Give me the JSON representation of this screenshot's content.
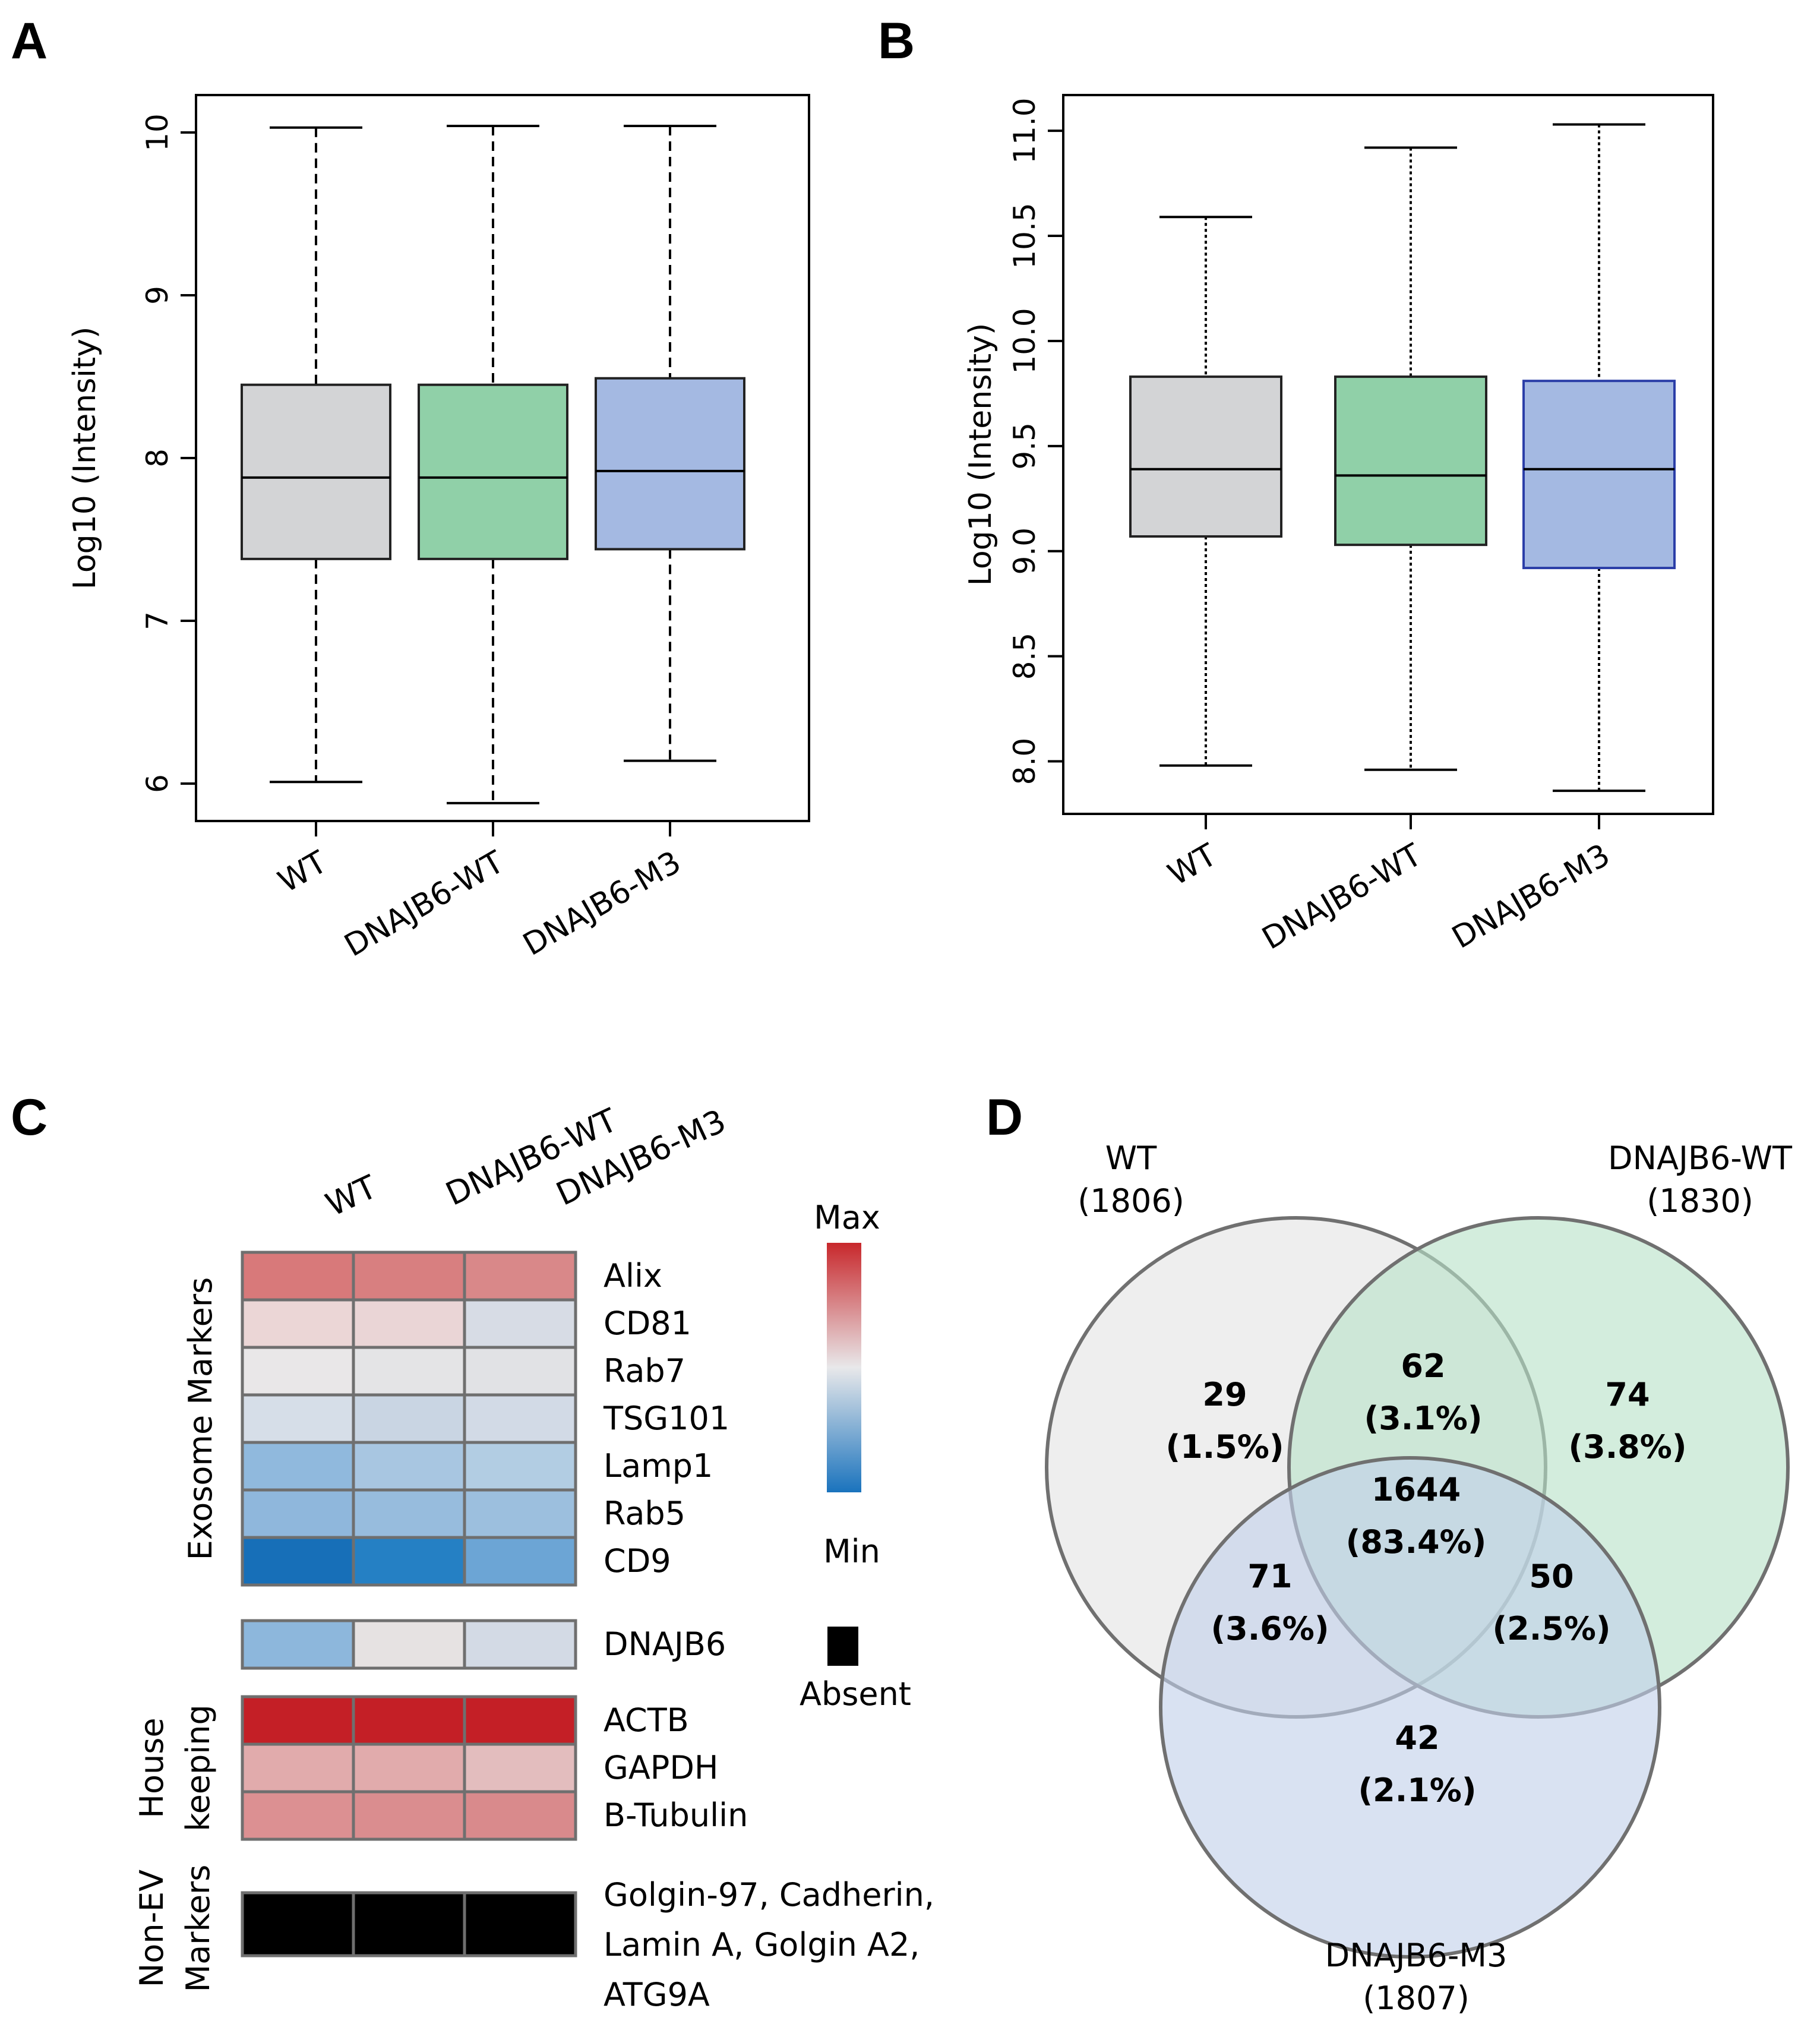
{
  "panels": {
    "a": "A",
    "b": "B",
    "c": "C",
    "d": "D"
  },
  "chart_data": [
    {
      "panel": "A",
      "type": "boxplot",
      "ylabel": "Log10 (Intensity)",
      "ylim": [
        5.77,
        10.23
      ],
      "yticks": [
        6,
        7,
        8,
        9,
        10
      ],
      "categories": [
        "WT",
        "DNAJB6-WT",
        "DNAJB6-M3"
      ],
      "whisker_style": "dashed",
      "boxes": [
        {
          "min": 6.01,
          "q1": 7.38,
          "median": 7.88,
          "q3": 8.45,
          "max": 10.03,
          "color": "#d3d4d6",
          "stroke": "#222222"
        },
        {
          "min": 5.88,
          "q1": 7.38,
          "median": 7.88,
          "q3": 8.45,
          "max": 10.04,
          "color": "#90d0a8",
          "stroke": "#222222"
        },
        {
          "min": 6.14,
          "q1": 7.44,
          "median": 7.92,
          "q3": 8.49,
          "max": 10.04,
          "color": "#a4b9e2",
          "stroke": "#222222"
        }
      ]
    },
    {
      "panel": "B",
      "type": "boxplot",
      "ylabel": "Log10 (Intensity)",
      "ylim": [
        7.75,
        11.17
      ],
      "yticks": [
        "8.0",
        "8.5",
        "9.0",
        "9.5",
        "10.0",
        "10.5",
        "11.0"
      ],
      "categories": [
        "WT",
        "DNAJB6-WT",
        "DNAJB6-M3"
      ],
      "whisker_style": "dotted",
      "boxes": [
        {
          "min": 7.98,
          "q1": 9.07,
          "median": 9.39,
          "q3": 9.83,
          "max": 10.59,
          "color": "#d3d4d6",
          "stroke": "#222222"
        },
        {
          "min": 7.96,
          "q1": 9.03,
          "median": 9.36,
          "q3": 9.83,
          "max": 10.92,
          "color": "#90d0a8",
          "stroke": "#222222"
        },
        {
          "min": 7.86,
          "q1": 8.92,
          "median": 9.39,
          "q3": 9.81,
          "max": 11.03,
          "color": "#a4b9e2",
          "stroke": "#2b3ea8"
        }
      ]
    },
    {
      "panel": "C",
      "type": "heatmap",
      "columns": [
        "WT",
        "DNAJB6-WT",
        "DNAJB6-M3"
      ],
      "groups": [
        {
          "label": "Exosome Markers",
          "rows": [
            {
              "name": "Alix",
              "colors": [
                "#d8797a",
                "#d87f80",
                "#d98889"
              ]
            },
            {
              "name": "CD81",
              "colors": [
                "#ebd6d6",
                "#ead5d6",
                "#d7dce5"
              ]
            },
            {
              "name": "Rab7",
              "colors": [
                "#e9e7e8",
                "#e4e4e6",
                "#e1e2e5"
              ]
            },
            {
              "name": "TSG101",
              "colors": [
                "#d6dee8",
                "#c9d5e3",
                "#d2dae6"
              ]
            },
            {
              "name": "Lamp1",
              "colors": [
                "#90b9dd",
                "#a8c6e1",
                "#b2cde3"
              ]
            },
            {
              "name": "Rab5",
              "colors": [
                "#8fb7dc",
                "#97bcdd",
                "#9cbfde"
              ]
            },
            {
              "name": "CD9",
              "colors": [
                "#176fb8",
                "#2580c4",
                "#6ca5d5"
              ]
            }
          ]
        },
        {
          "label": "",
          "rows": [
            {
              "name": "DNAJB6",
              "colors": [
                "#8db7dc",
                "#e6e2e2",
                "#d3dae5"
              ]
            }
          ]
        },
        {
          "label_line1": "House",
          "label_line2": "keeping",
          "rows": [
            {
              "name": "ACTB",
              "colors": [
                "#c41f26",
                "#c41f26",
                "#c41f26"
              ]
            },
            {
              "name": "GAPDH",
              "colors": [
                "#e1abac",
                "#e1abac",
                "#e3bdbe"
              ]
            },
            {
              "name": "B-Tubulin",
              "colors": [
                "#dc9092",
                "#da8d8f",
                "#d98a8c"
              ]
            }
          ]
        },
        {
          "label_line1": "Non-EV",
          "label_line2": "Markers",
          "rows": [
            {
              "name_lines": [
                "Golgin-97, Cadherin,",
                "Lamin A, Golgin A2,",
                "ATG9A"
              ],
              "colors": [
                "#000000",
                "#000000",
                "#000000"
              ]
            }
          ]
        }
      ],
      "legend": {
        "max_label": "Max",
        "min_label": "Min",
        "absent_label": "Absent",
        "gradient": [
          "#c8282c",
          "#e8e8ea",
          "#1a73bd"
        ]
      }
    },
    {
      "panel": "D",
      "type": "venn",
      "sets": [
        {
          "name": "WT",
          "size": "(1806)",
          "color": "#e3e3e3"
        },
        {
          "name": "DNAJB6-WT",
          "size": "(1830)",
          "color": "#b8e2c8"
        },
        {
          "name": "DNAJB6-M3",
          "size": "(1807)",
          "color": "#c1d1ea"
        }
      ],
      "regions": [
        {
          "sets": [
            "WT"
          ],
          "count": "29",
          "percent": "(1.5%)"
        },
        {
          "sets": [
            "WT",
            "DNAJB6-WT"
          ],
          "count": "62",
          "percent": "(3.1%)"
        },
        {
          "sets": [
            "DNAJB6-WT"
          ],
          "count": "74",
          "percent": "(3.8%)"
        },
        {
          "sets": [
            "WT",
            "DNAJB6-WT",
            "DNAJB6-M3"
          ],
          "count": "1644",
          "percent": "(83.4%)"
        },
        {
          "sets": [
            "WT",
            "DNAJB6-M3"
          ],
          "count": "71",
          "percent": "(3.6%)"
        },
        {
          "sets": [
            "DNAJB6-WT",
            "DNAJB6-M3"
          ],
          "count": "50",
          "percent": "(2.5%)"
        },
        {
          "sets": [
            "DNAJB6-M3"
          ],
          "count": "42",
          "percent": "(2.1%)"
        }
      ]
    }
  ]
}
